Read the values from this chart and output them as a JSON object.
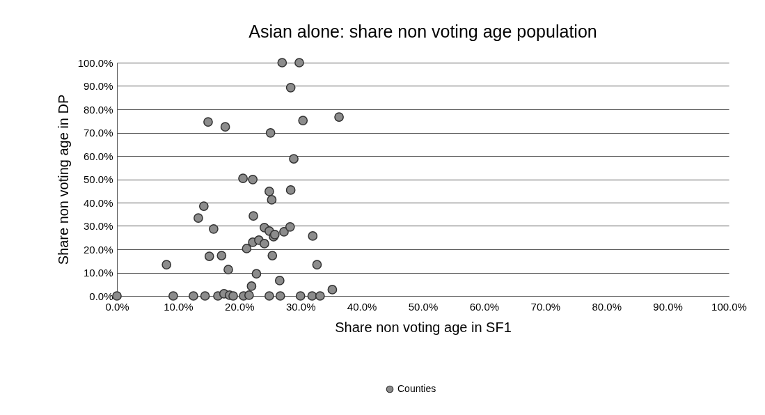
{
  "chart_data": {
    "type": "scatter",
    "title": "Asian alone: share non voting age population",
    "xlabel": "Share non voting age in SF1",
    "ylabel": "Share non voting age in DP",
    "x": [
      0,
      8.1,
      9.2,
      12.5,
      14.4,
      14.2,
      13.3,
      15.8,
      15.1,
      17.1,
      18.2,
      16.5,
      17.5,
      18.4,
      19.0,
      20.7,
      21.6,
      22.0,
      22.8,
      21.2,
      22.2,
      23.2,
      24.1,
      24.1,
      24.9,
      25.6,
      25.8,
      22.3,
      25.4,
      26.6,
      27.3,
      28.3,
      24.9,
      26.7,
      30.0,
      31.9,
      33.2,
      32.0,
      32.7,
      35.2,
      24.9,
      25.3,
      28.4,
      27.0,
      29.8,
      28.4,
      14.9,
      17.7,
      25.1,
      30.4,
      36.3,
      28.9,
      20.6,
      22.2
    ],
    "series": [
      {
        "name": "Counties",
        "color": "#8c8c8c",
        "values": [
          0,
          13.4,
          0,
          0,
          0,
          38.5,
          33.4,
          28.7,
          17.0,
          17.3,
          11.3,
          0,
          0.9,
          0.3,
          0,
          0,
          0.3,
          4.2,
          9.5,
          20.3,
          23.0,
          23.9,
          22.4,
          29.3,
          27.8,
          25.4,
          26.3,
          34.3,
          17.3,
          6.6,
          27.5,
          29.6,
          0,
          0,
          0,
          0,
          0,
          25.7,
          13.4,
          2.7,
          44.8,
          41.2,
          45.4,
          100,
          100,
          89.3,
          74.6,
          72.5,
          69.9,
          75.2,
          76.7,
          58.8,
          50.4,
          49.9
        ]
      }
    ],
    "xlim": [
      0,
      100
    ],
    "ylim": [
      0,
      100
    ],
    "xticks": [
      {
        "value": 0,
        "label": "0.0%"
      },
      {
        "value": 10,
        "label": "10.0%"
      },
      {
        "value": 20,
        "label": "20.0%"
      },
      {
        "value": 30,
        "label": "30.0%"
      },
      {
        "value": 40,
        "label": "40.0%"
      },
      {
        "value": 50,
        "label": "50.0%"
      },
      {
        "value": 60,
        "label": "60.0%"
      },
      {
        "value": 70,
        "label": "70.0%"
      },
      {
        "value": 80,
        "label": "80.0%"
      },
      {
        "value": 90,
        "label": "90.0%"
      },
      {
        "value": 100,
        "label": "100.0%"
      }
    ],
    "yticks": [
      {
        "value": 0,
        "label": "0.0%"
      },
      {
        "value": 10,
        "label": "10.0%"
      },
      {
        "value": 20,
        "label": "20.0%"
      },
      {
        "value": 30,
        "label": "30.0%"
      },
      {
        "value": 40,
        "label": "40.0%"
      },
      {
        "value": 50,
        "label": "50.0%"
      },
      {
        "value": 60,
        "label": "60.0%"
      },
      {
        "value": 70,
        "label": "70.0%"
      },
      {
        "value": 80,
        "label": "80.0%"
      },
      {
        "value": 90,
        "label": "90.0%"
      },
      {
        "value": 100,
        "label": "100.0%"
      }
    ],
    "grid": "y",
    "legend": "bottom",
    "marker": "circle"
  }
}
